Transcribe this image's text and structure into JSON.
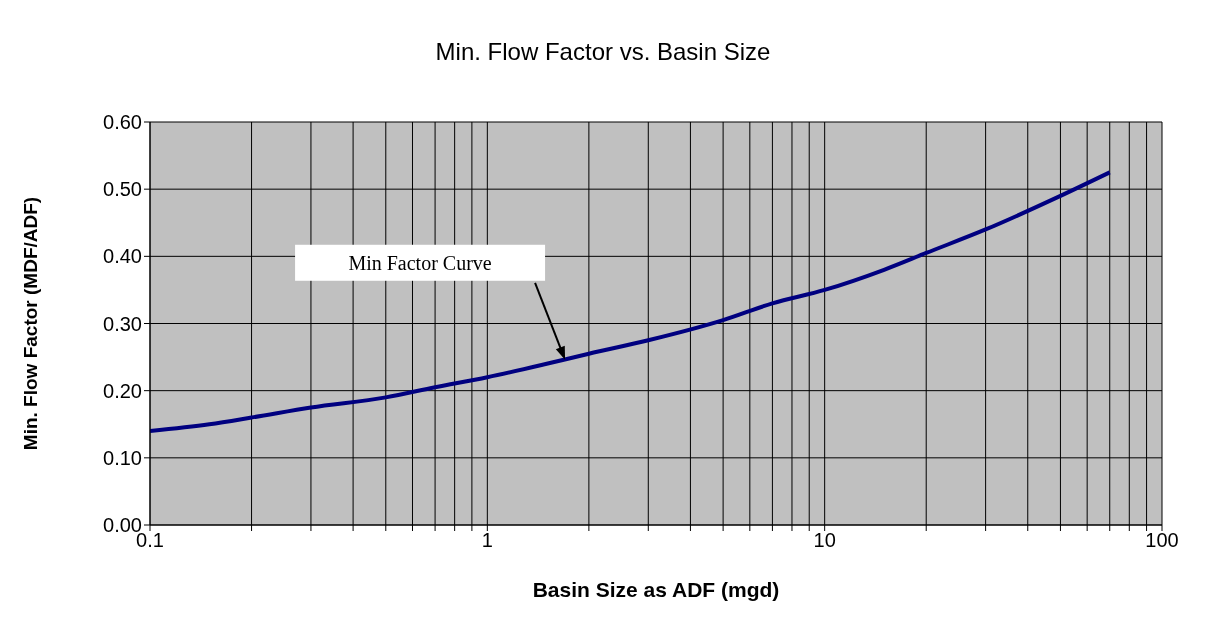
{
  "chart_data": {
    "type": "line",
    "title": "Min. Flow Factor vs. Basin Size",
    "xlabel": "Basin Size as ADF (mgd)",
    "ylabel": "Min. Flow Factor (MDF/ADF)",
    "x": [
      0.1,
      0.15,
      0.2,
      0.3,
      0.5,
      0.7,
      1,
      1.5,
      2,
      3,
      5,
      7,
      10,
      15,
      20,
      30,
      50,
      70
    ],
    "series": [
      {
        "color": "#000080",
        "values": [
          0.14,
          0.15,
          0.16,
          0.175,
          0.19,
          0.205,
          0.22,
          0.24,
          0.255,
          0.275,
          0.305,
          0.33,
          0.35,
          0.38,
          0.405,
          0.44,
          0.49,
          0.525
        ]
      }
    ],
    "xlim": [
      0.1,
      100
    ],
    "xticks": [
      0.1,
      {
        "value": 0.2,
        "label": null
      },
      {
        "value": 0.3,
        "label": null
      },
      {
        "value": 0.4,
        "label": null
      },
      {
        "value": 0.5,
        "label": null
      },
      {
        "value": 0.6,
        "label": null
      },
      {
        "value": 0.7,
        "label": null
      },
      {
        "value": 0.8,
        "label": null
      },
      {
        "value": 0.9,
        "label": null
      },
      1,
      {
        "value": 2,
        "label": null
      },
      {
        "value": 3,
        "label": null
      },
      {
        "value": 4,
        "label": null
      },
      {
        "value": 5,
        "label": null
      },
      {
        "value": 6,
        "label": null
      },
      {
        "value": 7,
        "label": null
      },
      {
        "value": 8,
        "label": null
      },
      {
        "value": 9,
        "label": null
      },
      10,
      {
        "value": 20,
        "label": null
      },
      {
        "value": 30,
        "label": null
      },
      {
        "value": 40,
        "label": null
      },
      {
        "value": 50,
        "label": null
      },
      {
        "value": 60,
        "label": null
      },
      {
        "value": 70,
        "label": null
      },
      {
        "value": 80,
        "label": null
      },
      {
        "value": 90,
        "label": null
      },
      100
    ],
    "ylim": [
      0,
      0.6
    ],
    "yticks": [
      {
        "value": 0,
        "label": "0.00"
      },
      {
        "value": 0.1,
        "label": "0.10"
      },
      {
        "value": 0.2,
        "label": "0.20"
      },
      {
        "value": 0.3,
        "label": "0.30"
      },
      {
        "value": 0.4,
        "label": "0.40"
      },
      {
        "value": 0.5,
        "label": "0.50"
      },
      {
        "value": 0.6,
        "label": "0.60"
      }
    ],
    "log": "x",
    "grid": true,
    "legend": false,
    "marker": "none",
    "line_style": "solid",
    "annotations": [
      "Min Factor Curve"
    ]
  }
}
